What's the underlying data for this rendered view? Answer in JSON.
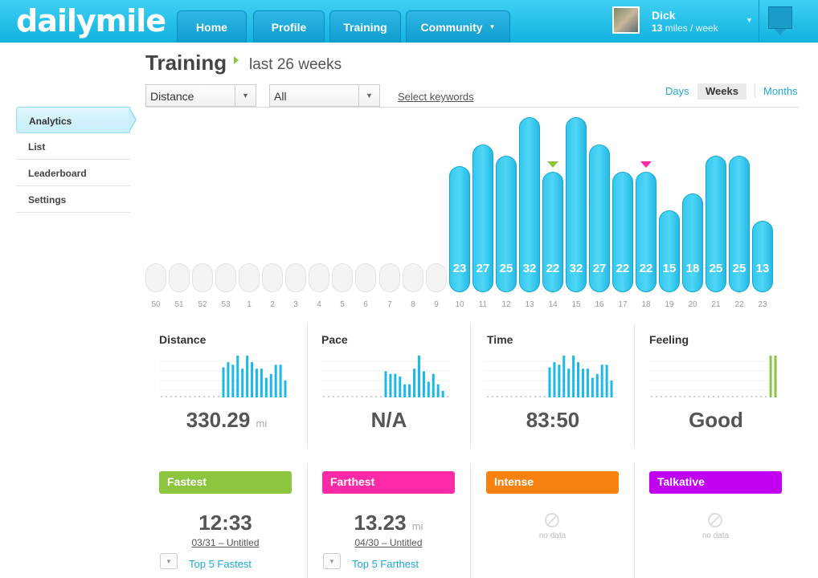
{
  "header": {
    "logo": "dailymile",
    "nav": [
      {
        "label": "Home"
      },
      {
        "label": "Profile"
      },
      {
        "label": "Training"
      },
      {
        "label": "Community",
        "has_dropdown": true
      }
    ],
    "user": {
      "name": "Dick",
      "miles_value": "13",
      "miles_unit": "miles / week"
    },
    "colors": {
      "brand": "#1cb8e6",
      "accent_green": "#8cc63f"
    }
  },
  "page": {
    "title": "Training",
    "subtitle": "last 26 weeks"
  },
  "filters": {
    "metric": "Distance",
    "type": "All",
    "keywords_label": "Select keywords",
    "periods": [
      {
        "label": "Days",
        "active": false
      },
      {
        "label": "Weeks",
        "active": true
      },
      {
        "label": "Months",
        "active": false
      }
    ]
  },
  "sidebar": {
    "items": [
      {
        "label": "Analytics",
        "active": true
      },
      {
        "label": "List",
        "active": false
      },
      {
        "label": "Leaderboard",
        "active": false
      },
      {
        "label": "Settings",
        "active": false
      }
    ]
  },
  "chart_data": {
    "type": "bar",
    "categories": [
      "50",
      "51",
      "52",
      "53",
      "1",
      "2",
      "3",
      "4",
      "5",
      "6",
      "7",
      "8",
      "9",
      "10",
      "11",
      "12",
      "13",
      "14",
      "15",
      "16",
      "17",
      "18",
      "19",
      "20",
      "21",
      "22",
      "23"
    ],
    "values": [
      0,
      0,
      0,
      0,
      0,
      0,
      0,
      0,
      0,
      0,
      0,
      0,
      0,
      23,
      27,
      25,
      32,
      22,
      32,
      27,
      22,
      22,
      15,
      18,
      25,
      25,
      13
    ],
    "ylabel": "",
    "xlabel": "",
    "unit": "miles",
    "markers": [
      {
        "category": "14",
        "color": "#8cc63f"
      },
      {
        "category": "18",
        "color": "#ff2aa8"
      }
    ],
    "bar_color": "#33c6ee"
  },
  "stats": [
    {
      "title": "Distance",
      "value": "330.29",
      "unit": "mi",
      "spark_color": "#1cb8e6",
      "spark": [
        0,
        0,
        0,
        0,
        0,
        0,
        0,
        0,
        0,
        0,
        0,
        0,
        0,
        23,
        27,
        25,
        32,
        22,
        32,
        27,
        22,
        22,
        15,
        18,
        25,
        25,
        13
      ]
    },
    {
      "title": "Pace",
      "value": "N/A",
      "unit": "",
      "spark_color": "#1cb8e6",
      "spark": [
        0,
        0,
        0,
        0,
        0,
        0,
        0,
        0,
        0,
        0,
        0,
        0,
        0,
        20,
        18,
        18,
        16,
        10,
        10,
        22,
        32,
        20,
        12,
        18,
        10,
        5,
        0
      ]
    },
    {
      "title": "Time",
      "value": "83:50",
      "unit": "",
      "spark_color": "#1cb8e6",
      "spark": [
        0,
        0,
        0,
        0,
        0,
        0,
        0,
        0,
        0,
        0,
        0,
        0,
        0,
        23,
        27,
        25,
        32,
        22,
        32,
        27,
        22,
        22,
        15,
        18,
        25,
        25,
        13
      ]
    },
    {
      "title": "Feeling",
      "value": "Good",
      "unit": "",
      "spark_color": "#8cc63f",
      "spark": [
        0,
        0,
        0,
        0,
        0,
        0,
        0,
        0,
        0,
        0,
        0,
        0,
        0,
        0,
        0,
        0,
        0,
        0,
        0,
        0,
        0,
        0,
        0,
        0,
        0,
        32,
        32
      ]
    }
  ],
  "records": [
    {
      "label": "Fastest",
      "color": "#8cc63f",
      "value": "12:33",
      "unit": "",
      "date": "03/31 – Untitled",
      "link": "Top 5 Fastest",
      "has_data": true
    },
    {
      "label": "Farthest",
      "color": "#ff2aa8",
      "value": "13.23",
      "unit": "mi",
      "date": "04/30 – Untitled",
      "link": "Top 5 Farthest",
      "has_data": true
    },
    {
      "label": "Intense",
      "color": "#f7820f",
      "no_data_text": "no data",
      "has_data": false
    },
    {
      "label": "Talkative",
      "color": "#c000f0",
      "no_data_text": "no data",
      "has_data": false
    }
  ]
}
